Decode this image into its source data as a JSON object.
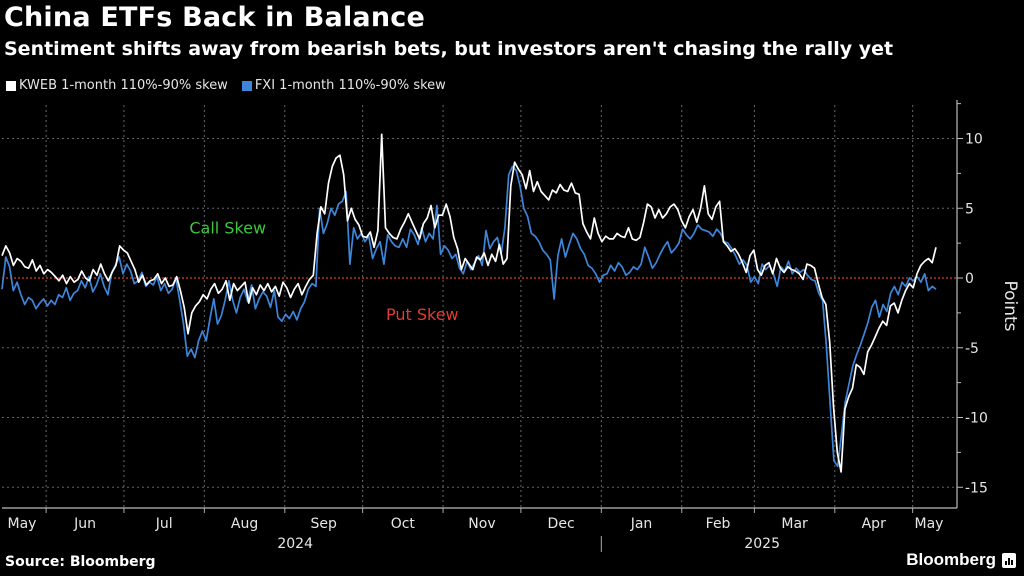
{
  "header": {
    "title": "China ETFs Back in Balance",
    "subtitle": "Sentiment shifts away from bearish bets, but investors aren't chasing the rally yet"
  },
  "footer": {
    "source": "Source: Bloomberg",
    "brand": "Bloomberg"
  },
  "chart_data": {
    "type": "line",
    "title": "China ETFs Back in Balance",
    "subtitle": "Sentiment shifts away from bearish bets, but investors aren't chasing the rally yet",
    "xlabel": "",
    "ylabel": "Points",
    "ylim": [
      -16.5,
      12
    ],
    "yticks": [
      10,
      5,
      0,
      -5,
      -10,
      -15
    ],
    "ytick_labels": [
      "10",
      "5",
      "0",
      "-5",
      "-10",
      "-15"
    ],
    "x_start": "2024-05-15",
    "x_end": "2025-05-10",
    "xticks": [
      {
        "label": "May",
        "date": "2024-05-01",
        "divider": false
      },
      {
        "label": "Jun",
        "date": "2024-06-01"
      },
      {
        "label": "Jul",
        "date": "2024-07-01"
      },
      {
        "label": "Aug",
        "date": "2024-08-01"
      },
      {
        "label": "Sep",
        "date": "2024-09-01"
      },
      {
        "label": "Oct",
        "date": "2024-10-01"
      },
      {
        "label": "Nov",
        "date": "2024-11-01"
      },
      {
        "label": "Dec",
        "date": "2024-12-01"
      },
      {
        "label": "Jan",
        "date": "2025-01-01"
      },
      {
        "label": "Feb",
        "date": "2025-02-01"
      },
      {
        "label": "Mar",
        "date": "2025-03-01"
      },
      {
        "label": "Apr",
        "date": "2025-04-01"
      },
      {
        "label": "May",
        "date": "2025-05-01"
      }
    ],
    "year_labels": [
      {
        "label": "2024",
        "date": "2024-09-05"
      },
      {
        "label": "2025",
        "date": "2025-03-04"
      }
    ],
    "year_divider": "2025-01-01",
    "grid": true,
    "reference_line": {
      "value": 0,
      "color": "#d9402b"
    },
    "annotations": [
      {
        "text": "Call Skew",
        "date": "2024-08-10",
        "value": 3.2,
        "color": "#3ec43e"
      },
      {
        "text": "Put Skew",
        "date": "2024-10-24",
        "value": -3.0,
        "color": "#e03c31"
      }
    ],
    "legend_position": "top-left",
    "series": [
      {
        "name": "KWEB 1-month 110%-90% skew",
        "color": "#ffffff",
        "day_offset_start": 0,
        "values": [
          1.6,
          2.3,
          1.8,
          0.9,
          1.4,
          1.2,
          0.8,
          0.7,
          1.3,
          0.5,
          0.9,
          0.3,
          0.6,
          0.4,
          0.1,
          -0.2,
          0.2,
          -0.4,
          0.1,
          -0.3,
          -0.1,
          0.5,
          0.0,
          -0.2,
          0.6,
          0.2,
          1.0,
          0.3,
          -0.2,
          0.4,
          0.9,
          2.3,
          2.0,
          1.8,
          1.2,
          0.6,
          -0.3,
          0.2,
          -0.5,
          -0.2,
          -0.1,
          0.3,
          -0.4,
          0.0,
          -0.6,
          -0.5,
          0.1,
          -0.9,
          -2.1,
          -4.0,
          -2.5,
          -2.0,
          -1.7,
          -1.2,
          -1.5,
          -0.8,
          -0.4,
          -1.1,
          -0.8,
          -0.2,
          -1.6,
          -0.4,
          -0.9,
          -0.6,
          -0.3,
          -1.8,
          -0.7,
          -1.2,
          -0.5,
          -0.9,
          -0.4,
          -1.0,
          -0.6,
          -1.3,
          -0.3,
          -0.7,
          -1.4,
          -0.8,
          -0.4,
          -1.2,
          -0.6,
          -0.1,
          0.2,
          3.2,
          5.1,
          4.6,
          6.8,
          8.0,
          8.6,
          8.8,
          7.4,
          4.1,
          5.0,
          4.2,
          3.8,
          3.0,
          2.9,
          3.3,
          2.2,
          3.4,
          10.3,
          3.6,
          3.2,
          2.9,
          2.8,
          3.5,
          4.0,
          4.6,
          4.0,
          3.4,
          2.8,
          3.9,
          4.3,
          5.2,
          3.6,
          4.5,
          4.5,
          5.3,
          4.4,
          2.9,
          2.1,
          0.6,
          1.4,
          1.0,
          0.6,
          1.5,
          1.3,
          1.8,
          0.9,
          1.7,
          1.2,
          2.4,
          1.0,
          1.4,
          6.6,
          8.3,
          7.8,
          7.4,
          6.4,
          7.7,
          6.2,
          6.9,
          6.2,
          5.9,
          5.6,
          6.3,
          6.1,
          6.7,
          6.3,
          6.2,
          6.8,
          6.1,
          6.0,
          3.9,
          3.3,
          2.8,
          4.3,
          3.2,
          2.6,
          3.0,
          2.8,
          2.8,
          3.2,
          3.0,
          2.9,
          3.6,
          2.8,
          2.7,
          2.9,
          4.0,
          5.3,
          5.1,
          4.3,
          4.9,
          4.3,
          4.6,
          5.1,
          5.3,
          4.9,
          4.1,
          3.6,
          4.4,
          4.9,
          4.0,
          5.0,
          6.6,
          4.6,
          4.2,
          5.1,
          5.5,
          2.6,
          2.3,
          1.9,
          2.1,
          1.7,
          1.1,
          0.4,
          1.6,
          2.0,
          0.6,
          0.2,
          0.9,
          1.1,
          0.3,
          1.4,
          0.7,
          0.4,
          0.8,
          0.6,
          0.5,
          0.3,
          -0.1,
          1.0,
          0.9,
          0.7,
          -0.4,
          -1.4,
          -1.9,
          -4.6,
          -9.2,
          -12.5,
          -13.9,
          -9.4,
          -8.5,
          -7.9,
          -6.2,
          -6.4,
          -6.9,
          -5.3,
          -4.8,
          -4.2,
          -3.6,
          -3.1,
          -3.4,
          -2.0,
          -1.8,
          -2.5,
          -1.6,
          -0.9,
          -0.4,
          -0.7,
          0.3,
          0.9,
          1.2,
          1.4,
          1.1,
          2.2
        ]
      },
      {
        "name": "FXI 1-month 110%-90% skew",
        "color": "#3d86d9",
        "day_offset_start": 0,
        "values": [
          -0.8,
          1.5,
          0.8,
          -0.9,
          -0.3,
          -1.2,
          -1.9,
          -1.4,
          -1.6,
          -2.2,
          -1.8,
          -1.5,
          -2.0,
          -1.6,
          -1.9,
          -1.2,
          -1.4,
          -0.7,
          -1.6,
          -1.1,
          -0.9,
          -0.2,
          -0.7,
          0.1,
          -1.0,
          -0.5,
          0.3,
          -0.6,
          -1.2,
          0.4,
          0.9,
          1.5,
          0.3,
          1.0,
          0.5,
          -0.4,
          -0.2,
          0.4,
          -0.6,
          -0.3,
          -0.5,
          0.1,
          -0.9,
          -0.4,
          -1.1,
          -0.8,
          0.0,
          -1.6,
          -3.3,
          -5.6,
          -5.1,
          -5.7,
          -4.5,
          -3.8,
          -4.5,
          -2.9,
          -1.5,
          -3.3,
          -2.7,
          -1.6,
          -0.2,
          -1.6,
          -2.5,
          -1.4,
          -0.8,
          -1.7,
          -0.5,
          -2.2,
          -1.5,
          -1.0,
          -1.3,
          -2.1,
          -0.9,
          -2.8,
          -3.1,
          -2.6,
          -2.9,
          -2.4,
          -3.0,
          -2.2,
          -1.7,
          -0.8,
          -0.4,
          -0.6,
          5.0,
          3.2,
          3.9,
          5.0,
          4.5,
          5.3,
          5.5,
          6.2,
          1.0,
          3.6,
          2.8,
          3.2,
          2.6,
          3.0,
          1.4,
          2.1,
          2.6,
          1.0,
          3.1,
          2.6,
          2.3,
          2.2,
          2.8,
          2.2,
          3.5,
          3.1,
          2.4,
          3.6,
          2.6,
          3.2,
          2.8,
          5.2,
          1.7,
          2.3,
          2.0,
          1.4,
          1.7,
          0.7,
          0.3,
          1.2,
          0.6,
          1.1,
          1.6,
          0.9,
          3.4,
          2.1,
          2.6,
          2.9,
          1.7,
          3.6,
          7.4,
          8.0,
          7.7,
          6.6,
          5.0,
          4.4,
          3.2,
          3.0,
          2.6,
          2.0,
          1.7,
          1.3,
          -1.5,
          1.6,
          2.8,
          1.5,
          2.4,
          3.2,
          2.8,
          2.1,
          1.7,
          0.9,
          0.7,
          0.3,
          -0.3,
          0.2,
          0.3,
          0.9,
          0.5,
          1.1,
          0.8,
          0.2,
          0.4,
          0.8,
          0.6,
          1.0,
          2.2,
          1.5,
          0.7,
          1.1,
          1.7,
          2.2,
          2.6,
          1.8,
          2.1,
          2.5,
          3.5,
          3.1,
          2.8,
          3.2,
          3.8,
          3.5,
          3.4,
          3.3,
          3.0,
          3.5,
          3.2,
          2.6,
          2.5,
          2.1,
          1.6,
          1.0,
          1.3,
          0.9,
          -0.3,
          0.1,
          -0.4,
          1.0,
          0.6,
          0.9,
          0.3,
          -0.6,
          0.8,
          0.5,
          1.2,
          0.3,
          0.7,
          0.4,
          0.6,
          0.2,
          -0.1,
          -0.2,
          -1.1,
          -1.6,
          -4.8,
          -9.0,
          -13.1,
          -13.5,
          -11.2,
          -8.9,
          -7.6,
          -6.3,
          -5.5,
          -4.8,
          -4.0,
          -3.2,
          -2.1,
          -1.6,
          -2.8,
          -1.9,
          -2.4,
          -1.1,
          -0.6,
          -1.2,
          -0.3,
          -0.6,
          0.0,
          -0.2,
          0.1,
          -0.3,
          0.3,
          -0.9,
          -0.6,
          -0.8
        ]
      }
    ]
  }
}
